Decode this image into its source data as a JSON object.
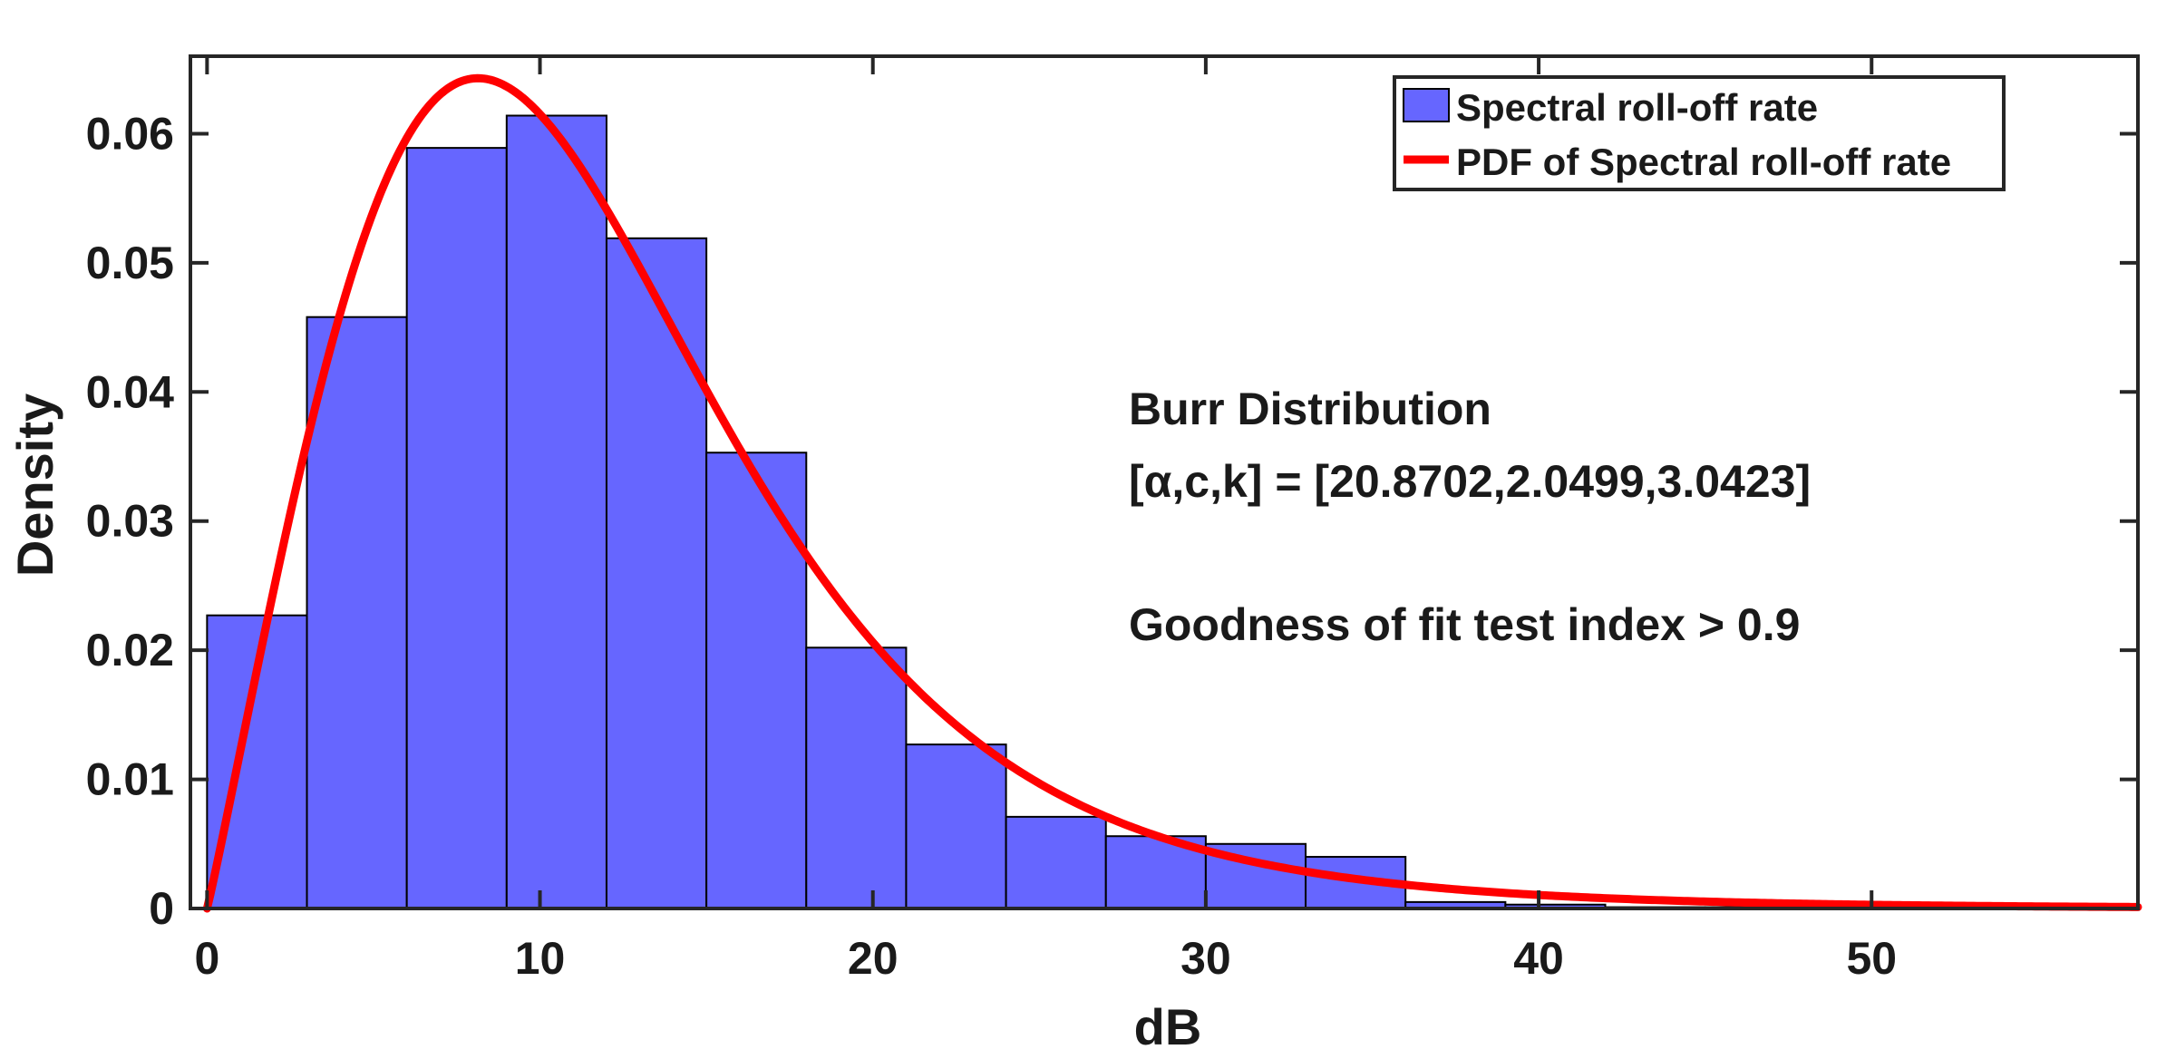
{
  "chart_data": {
    "type": "bar",
    "title": "",
    "xlabel": "dB",
    "ylabel": "Density",
    "xlim": [
      -0.5,
      58
    ],
    "ylim": [
      0,
      0.066
    ],
    "xticks": [
      0,
      10,
      20,
      30,
      40,
      50
    ],
    "yticks": [
      0,
      0.01,
      0.02,
      0.03,
      0.04,
      0.05,
      0.06
    ],
    "ytick_labels": [
      "0",
      "0.01",
      "0.02",
      "0.03",
      "0.04",
      "0.05",
      "0.06"
    ],
    "grid": false,
    "legend_position": "top-right",
    "colors": {
      "bar_fill": "#6666ff",
      "bar_edge": "#000000",
      "pdf_line": "#ff0000",
      "axis": "#262626"
    },
    "series": [
      {
        "name": "Spectral roll-off rate",
        "type": "bar",
        "bin_width": 3,
        "bin_starts": [
          0,
          3,
          6,
          9,
          12,
          15,
          18,
          21,
          24,
          27,
          30,
          33,
          36,
          39,
          42,
          45,
          48,
          51,
          54
        ],
        "values": [
          0.0227,
          0.0458,
          0.0589,
          0.0614,
          0.0519,
          0.0353,
          0.0202,
          0.0127,
          0.0071,
          0.0056,
          0.005,
          0.004,
          0.0005,
          0.0003,
          0.0001,
          0.0001,
          0.0001,
          0.0001,
          0.0001
        ]
      },
      {
        "name": "PDF of Spectral roll-off rate",
        "type": "line",
        "distribution": "Burr",
        "params": {
          "alpha": 20.8702,
          "c": 2.0499,
          "k": 3.0423
        },
        "x_range": [
          0,
          58
        ]
      }
    ],
    "annotations": [
      "Burr Distribution",
      "[α,c,k] = [20.8702,2.0499,3.0423]",
      "Goodness of fit test index > 0.9"
    ]
  }
}
